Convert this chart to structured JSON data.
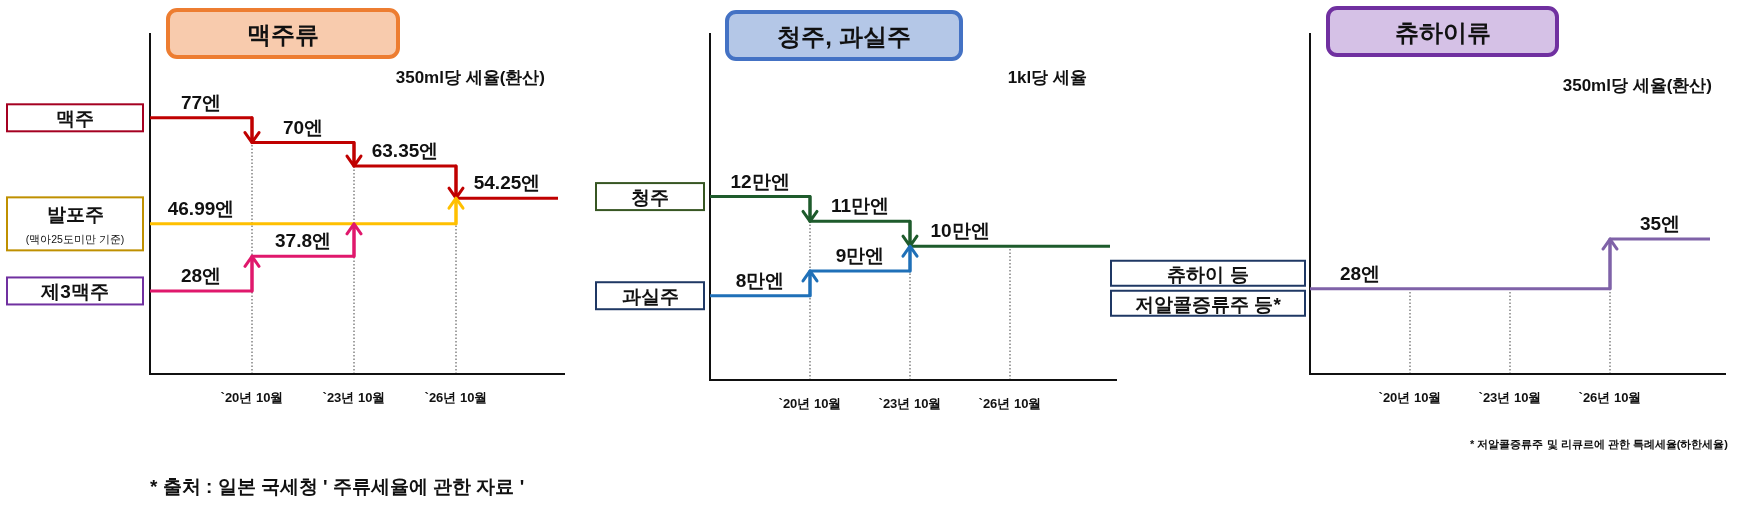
{
  "chart_data": [
    {
      "type": "step",
      "title": "맥주류",
      "subtitle": "350ml당 세율(환산)",
      "categories": [
        null,
        "`20년 10월",
        "`23년 10월",
        "`26년 10월",
        null
      ],
      "ylim": [
        4.5,
        101
      ],
      "tick_labels": "x",
      "legend": "left",
      "series": [
        {
          "name": "맥주",
          "color": "#c00000",
          "values": [
            77,
            70,
            63.35,
            54.25,
            54.25
          ],
          "value_labels": [
            "77엔",
            "70엔",
            "63.35엔",
            "54.25엔",
            null
          ]
        },
        {
          "name": "발포주",
          "color": "#ffc000",
          "values": [
            46.99,
            46.99,
            46.99,
            54.25,
            null
          ],
          "value_labels": [
            "46.99엔",
            null,
            null,
            null,
            null
          ]
        },
        {
          "name": "제3맥주",
          "color": "#e0186c",
          "values": [
            28,
            37.8,
            46.99,
            null,
            null
          ],
          "value_labels": [
            "28엔",
            "37.8엔",
            null,
            null,
            null
          ]
        }
      ],
      "ref_lines": [
        {
          "axis": "x",
          "value": "`20년 10월",
          "color": "#444444",
          "line_style": "dotted"
        },
        {
          "axis": "x",
          "value": "`23년 10월",
          "color": "#444444",
          "line_style": "dotted"
        },
        {
          "axis": "x",
          "value": "`26년 10월",
          "color": "#444444",
          "line_style": "dotted"
        }
      ],
      "annotations": [
        "(맥아25도미만 기준)",
        "* 출처 : 일본 국세청  ' 주류세율에 관한 자료 '"
      ]
    },
    {
      "type": "step",
      "title": "청주, 과실주",
      "subtitle": "1kl당 세율",
      "categories": [
        null,
        "`20년 10월",
        "`23년 10월",
        "`26년 10월",
        null
      ],
      "ylim": [
        4.6,
        18.6
      ],
      "tick_labels": "x",
      "legend": "left",
      "series": [
        {
          "name": "청주",
          "color": "#1e5b2c",
          "values": [
            12,
            11,
            10,
            10,
            10
          ],
          "value_labels": [
            "12만엔",
            "11만엔",
            "10만엔",
            null,
            null
          ]
        },
        {
          "name": "과실주",
          "color": "#1f70b8",
          "values": [
            8,
            9,
            10,
            null,
            null
          ],
          "value_labels": [
            "8만엔",
            "9만엔",
            null,
            null,
            null
          ]
        }
      ],
      "ref_lines": [
        {
          "axis": "x",
          "value": "`20년 10월",
          "color": "#444444",
          "line_style": "dotted"
        },
        {
          "axis": "x",
          "value": "`23년 10월",
          "color": "#444444",
          "line_style": "dotted"
        },
        {
          "axis": "x",
          "value": "`26년 10월",
          "color": "#444444",
          "line_style": "dotted"
        }
      ]
    },
    {
      "type": "step",
      "title": "츄하이류",
      "subtitle": "350ml당 세율(환산)",
      "categories": [
        null,
        "`20년 10월",
        "`23년 10월",
        "`26년 10월",
        null
      ],
      "ylim": [
        16,
        64
      ],
      "tick_labels": "x",
      "legend": "left",
      "series": [
        {
          "name": "츄하이 등",
          "color": "#7f62a8",
          "values": [
            28,
            28,
            28,
            35,
            35
          ],
          "value_labels": [
            "28엔",
            null,
            null,
            "35엔",
            null
          ]
        }
      ],
      "ref_lines": [
        {
          "axis": "x",
          "value": "`20년 10월",
          "color": "#444444",
          "line_style": "dotted"
        },
        {
          "axis": "x",
          "value": "`23년 10월",
          "color": "#444444",
          "line_style": "dotted"
        },
        {
          "axis": "x",
          "value": "`26년 10월",
          "color": "#444444",
          "line_style": "dotted"
        }
      ],
      "annotations": [
        "저알콜증류주 등*",
        "* 저알콜증류주 및 리큐르에 관한 특례세율(하한세율)"
      ]
    }
  ]
}
